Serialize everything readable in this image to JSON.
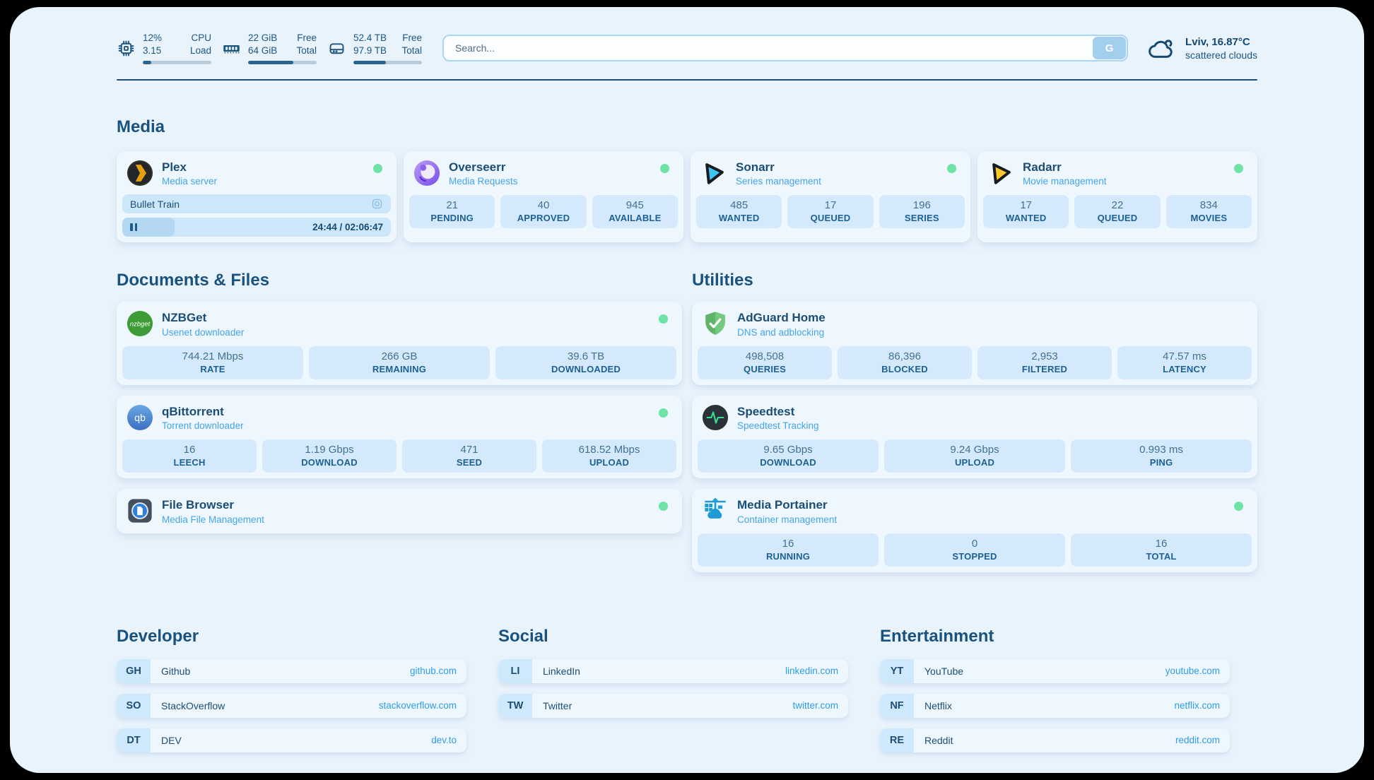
{
  "header": {
    "system": [
      {
        "name": "cpu",
        "value1": "12%",
        "value2": "3.15",
        "label1": "CPU",
        "label2": "Load",
        "percent": 12
      },
      {
        "name": "ram",
        "value1": "22 GiB",
        "value2": "64 GiB",
        "label1": "Free",
        "label2": "Total",
        "percent": 66
      },
      {
        "name": "disk",
        "value1": "52.4 TB",
        "value2": "97.9 TB",
        "label1": "Free",
        "label2": "Total",
        "percent": 47
      }
    ],
    "search": {
      "placeholder": "Search...",
      "button": "G"
    },
    "weather": {
      "summary": "Lviv, 16.87°C",
      "condition": "scattered clouds"
    }
  },
  "sections": {
    "media": {
      "title": "Media",
      "plex": {
        "title": "Plex",
        "subtitle": "Media server",
        "status": "online",
        "now_playing": "Bullet Train",
        "time": "24:44 / 02:06:47",
        "progress_percent": 19.5
      },
      "overseerr": {
        "title": "Overseerr",
        "subtitle": "Media Requests",
        "status": "online",
        "stats": [
          {
            "value": "21",
            "label": "PENDING"
          },
          {
            "value": "40",
            "label": "APPROVED"
          },
          {
            "value": "945",
            "label": "AVAILABLE"
          }
        ]
      },
      "sonarr": {
        "title": "Sonarr",
        "subtitle": "Series management",
        "status": "online",
        "stats": [
          {
            "value": "485",
            "label": "WANTED"
          },
          {
            "value": "17",
            "label": "QUEUED"
          },
          {
            "value": "196",
            "label": "SERIES"
          }
        ]
      },
      "radarr": {
        "title": "Radarr",
        "subtitle": "Movie management",
        "status": "online",
        "stats": [
          {
            "value": "17",
            "label": "WANTED"
          },
          {
            "value": "22",
            "label": "QUEUED"
          },
          {
            "value": "834",
            "label": "MOVIES"
          }
        ]
      }
    },
    "documents": {
      "title": "Documents & Files",
      "nzbget": {
        "title": "NZBGet",
        "subtitle": "Usenet downloader",
        "status": "online",
        "icon_text": "nzbget",
        "stats": [
          {
            "value": "744.21 Mbps",
            "label": "RATE"
          },
          {
            "value": "266 GB",
            "label": "REMAINING"
          },
          {
            "value": "39.6 TB",
            "label": "DOWNLOADED"
          }
        ]
      },
      "qbittorrent": {
        "title": "qBittorrent",
        "subtitle": "Torrent downloader",
        "status": "online",
        "icon_text": "qb",
        "stats": [
          {
            "value": "16",
            "label": "LEECH"
          },
          {
            "value": "1.19 Gbps",
            "label": "DOWNLOAD"
          },
          {
            "value": "471",
            "label": "SEED"
          },
          {
            "value": "618.52 Mbps",
            "label": "UPLOAD"
          }
        ]
      },
      "filebrowser": {
        "title": "File Browser",
        "subtitle": "Media File Management",
        "status": "online"
      }
    },
    "utilities": {
      "title": "Utilities",
      "adguard": {
        "title": "AdGuard Home",
        "subtitle": "DNS and adblocking",
        "stats": [
          {
            "value": "498,508",
            "label": "QUERIES"
          },
          {
            "value": "86,396",
            "label": "BLOCKED"
          },
          {
            "value": "2,953",
            "label": "FILTERED"
          },
          {
            "value": "47.57 ms",
            "label": "LATENCY"
          }
        ]
      },
      "speedtest": {
        "title": "Speedtest",
        "subtitle": "Speedtest Tracking",
        "stats": [
          {
            "value": "9.65 Gbps",
            "label": "DOWNLOAD"
          },
          {
            "value": "9.24 Gbps",
            "label": "UPLOAD"
          },
          {
            "value": "0.993 ms",
            "label": "PING"
          }
        ]
      },
      "portainer": {
        "title": "Media Portainer",
        "subtitle": "Container management",
        "status": "online",
        "stats": [
          {
            "value": "16",
            "label": "RUNNING"
          },
          {
            "value": "0",
            "label": "STOPPED"
          },
          {
            "value": "16",
            "label": "TOTAL"
          }
        ]
      }
    },
    "links": {
      "developer": {
        "title": "Developer",
        "items": [
          {
            "abbr": "GH",
            "name": "Github",
            "url": "github.com"
          },
          {
            "abbr": "SO",
            "name": "StackOverflow",
            "url": "stackoverflow.com"
          },
          {
            "abbr": "DT",
            "name": "DEV",
            "url": "dev.to"
          }
        ]
      },
      "social": {
        "title": "Social",
        "items": [
          {
            "abbr": "LI",
            "name": "LinkedIn",
            "url": "linkedin.com"
          },
          {
            "abbr": "TW",
            "name": "Twitter",
            "url": "twitter.com"
          }
        ]
      },
      "entertainment": {
        "title": "Entertainment",
        "items": [
          {
            "abbr": "YT",
            "name": "YouTube",
            "url": "youtube.com"
          },
          {
            "abbr": "NF",
            "name": "Netflix",
            "url": "netflix.com"
          },
          {
            "abbr": "RE",
            "name": "Reddit",
            "url": "reddit.com"
          }
        ]
      }
    }
  },
  "colors": {
    "panel_background": "#e8f3fc",
    "card_background": "#eef7fe",
    "stat_box_background": "#d4eafc",
    "navy_text": "#1c4d74",
    "subtitle_blue": "#47a4ea",
    "link_url_blue": "#2f9ce8",
    "status_online_green": "#6fe3a5",
    "progress_fill": "#2a648e"
  }
}
